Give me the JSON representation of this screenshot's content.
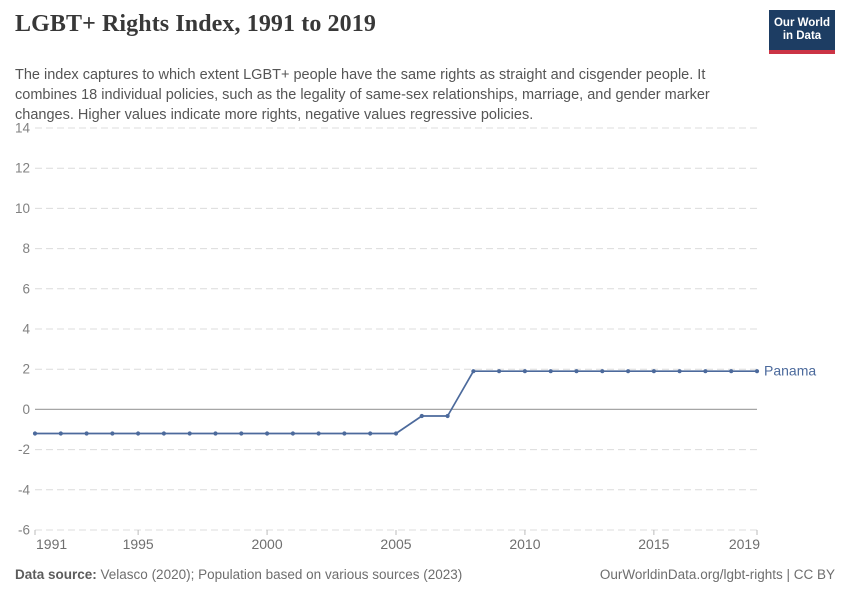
{
  "header": {
    "title": "LGBT+ Rights Index, 1991 to 2019",
    "subtitle": "The index captures to which extent LGBT+ people have the same rights as straight and cisgender people. It combines 18 individual policies, such as the legality of same-sex relationships, marriage, and gender marker changes. Higher values indicate more rights, negative values regressive policies.",
    "logo": {
      "line1": "Our World",
      "line2": "in Data"
    }
  },
  "chart_data": {
    "type": "line",
    "title": "LGBT+ Rights Index, 1991 to 2019",
    "xlabel": "",
    "ylabel": "",
    "xlim": [
      1991,
      2019
    ],
    "ylim": [
      -6,
      14
    ],
    "x_ticks": [
      1991,
      1995,
      2000,
      2005,
      2010,
      2015,
      2019
    ],
    "y_ticks": [
      -6,
      -4,
      -2,
      0,
      2,
      4,
      6,
      8,
      10,
      12,
      14
    ],
    "grid": "horizontal-dashed",
    "zero_line": true,
    "legend_position": "end-of-line-label",
    "series": [
      {
        "name": "Panama",
        "color": "#4c6a9c",
        "points": [
          [
            1991,
            -1.2
          ],
          [
            1992,
            -1.2
          ],
          [
            1993,
            -1.2
          ],
          [
            1994,
            -1.2
          ],
          [
            1995,
            -1.2
          ],
          [
            1996,
            -1.2
          ],
          [
            1997,
            -1.2
          ],
          [
            1998,
            -1.2
          ],
          [
            1999,
            -1.2
          ],
          [
            2000,
            -1.2
          ],
          [
            2001,
            -1.2
          ],
          [
            2002,
            -1.2
          ],
          [
            2003,
            -1.2
          ],
          [
            2004,
            -1.2
          ],
          [
            2005,
            -1.2
          ],
          [
            2006,
            -0.33
          ],
          [
            2007,
            -0.33
          ],
          [
            2008,
            1.9
          ],
          [
            2009,
            1.9
          ],
          [
            2010,
            1.9
          ],
          [
            2011,
            1.9
          ],
          [
            2012,
            1.9
          ],
          [
            2013,
            1.9
          ],
          [
            2014,
            1.9
          ],
          [
            2015,
            1.9
          ],
          [
            2016,
            1.9
          ],
          [
            2017,
            1.9
          ],
          [
            2018,
            1.9
          ],
          [
            2019,
            1.9
          ]
        ]
      }
    ]
  },
  "footer": {
    "datasource_label": "Data source:",
    "datasource_text": " Velasco (2020); Population based on various sources (2023)",
    "credit": "OurWorldinData.org/lgbt-rights | CC BY"
  },
  "colors": {
    "accent_line": "#4c6a9c",
    "grid": "#dcdcdc",
    "zero_line": "#a6a6a6",
    "tick_mark": "#bbbbbb",
    "y_label": "#818181",
    "x_label": "#6f6f6f",
    "logo_bg": "#1d3d63",
    "logo_bar": "#cb3445"
  }
}
